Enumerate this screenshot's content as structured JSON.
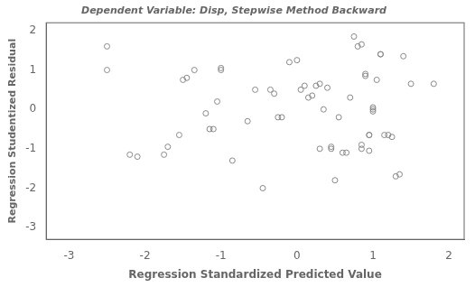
{
  "chart_data": {
    "type": "scatter",
    "title": "Dependent Variable: Disp, Stepwise Method Backward",
    "xlabel": "Regression Standardized Predicted Value",
    "ylabel": "Regression Studentized Residual",
    "xlim": [
      -3.3,
      2.2
    ],
    "ylim": [
      -3.3,
      2.2
    ],
    "xticks": [
      -3,
      -2,
      -1,
      0,
      1,
      2
    ],
    "yticks": [
      -3,
      -2,
      -1,
      0,
      1,
      2
    ],
    "color": "#888888",
    "grid": false,
    "x": [
      -2.5,
      -2.5,
      -2.2,
      -2.1,
      -1.7,
      -1.75,
      -1.55,
      -1.5,
      -1.45,
      -1.35,
      -1.2,
      -1.15,
      -1.1,
      -1.05,
      -1.0,
      -1.0,
      -0.85,
      -0.65,
      -0.55,
      -0.45,
      -0.35,
      -0.3,
      -0.25,
      -0.2,
      -0.1,
      0.0,
      0.05,
      0.1,
      0.15,
      0.2,
      0.25,
      0.3,
      0.3,
      0.35,
      0.4,
      0.45,
      0.45,
      0.5,
      0.55,
      0.6,
      0.65,
      0.7,
      0.75,
      0.8,
      0.85,
      0.85,
      0.85,
      0.9,
      0.9,
      0.95,
      0.95,
      0.95,
      1.0,
      1.0,
      1.0,
      1.05,
      1.1,
      1.1,
      1.15,
      1.2,
      1.25,
      1.3,
      1.35,
      1.4,
      1.5,
      1.8
    ],
    "values": [
      1.6,
      1.0,
      -1.15,
      -1.2,
      -0.95,
      -1.15,
      -0.65,
      0.75,
      0.8,
      1.0,
      -0.1,
      -0.5,
      -0.5,
      0.2,
      1.0,
      1.05,
      -1.3,
      -0.3,
      0.5,
      -2.0,
      0.5,
      0.4,
      -0.2,
      -0.2,
      1.2,
      1.25,
      0.5,
      0.6,
      0.3,
      0.35,
      0.6,
      0.65,
      -1.0,
      0.0,
      0.55,
      -0.95,
      -1.0,
      -1.8,
      -0.2,
      -1.1,
      -1.1,
      0.3,
      1.85,
      1.6,
      1.65,
      -0.9,
      -1.0,
      0.9,
      0.85,
      -0.65,
      -0.65,
      -1.05,
      -0.05,
      0.0,
      0.05,
      0.75,
      1.4,
      1.4,
      -0.65,
      -0.65,
      -0.7,
      -1.7,
      -1.65,
      1.35,
      0.65,
      0.65
    ]
  }
}
